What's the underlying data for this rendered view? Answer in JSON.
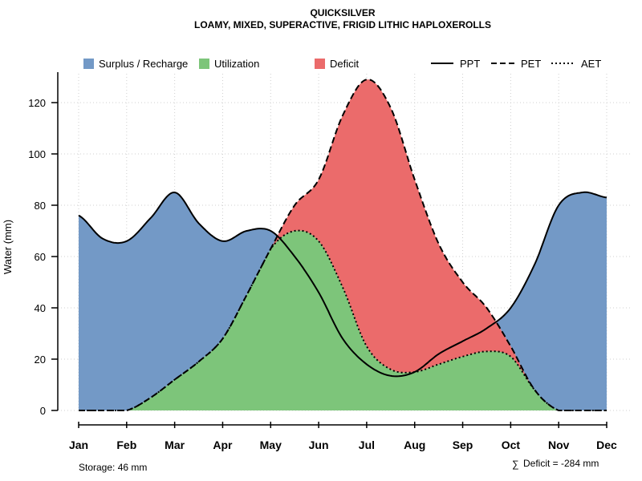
{
  "chart_data": {
    "type": "area",
    "title": "QUICKSILVER",
    "subtitle": "LOAMY, MIXED, SUPERACTIVE, FRIGID LITHIC HAPLOXEROLLS",
    "xlabel": "",
    "ylabel": "Water (mm)",
    "ylim": [
      0,
      130
    ],
    "yticks": [
      0,
      20,
      40,
      60,
      80,
      100,
      120
    ],
    "grid": true,
    "categories": [
      "Jan",
      "Feb",
      "Mar",
      "Apr",
      "May",
      "Jun",
      "Jul",
      "Aug",
      "Sep",
      "Oct",
      "Nov",
      "Dec"
    ],
    "x": [
      1,
      1.5,
      2,
      2.5,
      3,
      3.5,
      4,
      4.5,
      5,
      5.5,
      6,
      6.5,
      7,
      7.5,
      8,
      8.5,
      9,
      9.5,
      10,
      10.5,
      11,
      11.5,
      12
    ],
    "series": [
      {
        "name": "PPT",
        "style": "solid",
        "values": [
          76,
          67,
          66,
          75,
          85,
          73,
          66,
          70,
          70,
          60,
          46,
          28,
          18,
          13.5,
          15,
          22,
          27,
          32,
          40,
          57,
          80,
          85,
          83
        ]
      },
      {
        "name": "PET",
        "style": "dashed",
        "values": [
          0,
          0,
          0,
          5,
          12,
          19,
          28,
          45,
          63,
          80,
          90,
          115,
          129,
          118,
          90,
          65,
          50,
          40,
          25,
          8,
          0,
          0,
          0
        ]
      },
      {
        "name": "AET",
        "style": "dotted",
        "values": [
          0,
          0,
          0,
          5,
          12,
          19,
          28,
          45,
          63,
          70,
          66,
          48,
          25,
          16,
          15,
          18,
          21,
          23,
          21,
          8,
          0,
          0,
          0
        ]
      }
    ],
    "legend": {
      "position": "top",
      "areas": [
        {
          "label": "Surplus / Recharge",
          "color": "#7399c6"
        },
        {
          "label": "Utilization",
          "color": "#7dc57a"
        },
        {
          "label": "Deficit",
          "color": "#eb6b6b"
        }
      ],
      "lines": [
        {
          "label": "PPT",
          "style": "solid"
        },
        {
          "label": "PET",
          "style": "dashed"
        },
        {
          "label": "AET",
          "style": "dotted"
        }
      ]
    },
    "colors": {
      "surplus": "#7399c6",
      "utilization": "#7dc57a",
      "deficit": "#eb6b6b"
    },
    "storage_label": "Storage: 46 mm",
    "deficit_label": "Deficit = -284 mm",
    "sum_symbol": "∑"
  }
}
